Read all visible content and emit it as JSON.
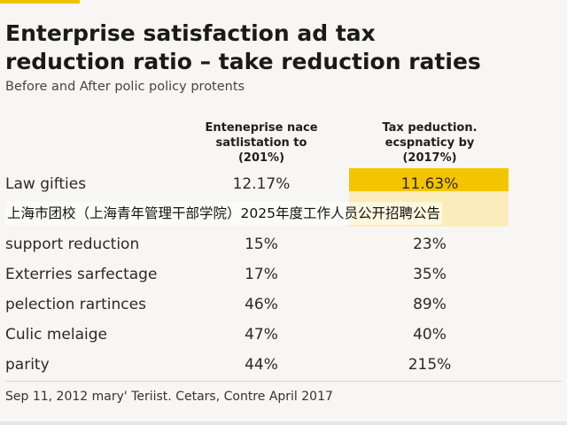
{
  "title": "Enterprise satisfaction ad tax\nreduction ratio – take reduction raties",
  "subtitle": "Before and After polic policy protents",
  "banner": "上海市团校（上海青年管理干部学院）2025年度工作人员公开招聘公告",
  "footer": "Sep 11, 2012 mary' Teriist. Cetars, Contre April 2017",
  "colors": {
    "highlight": "#f5c400",
    "accent": "#f2c200"
  },
  "chart_data": {
    "type": "table",
    "columns": [
      "Enteneprise nace\nsatlistation to\n(201%)",
      "Tax peduction.\necspnaticy by\n(2017%)"
    ],
    "rows": [
      {
        "label": "Law gifties",
        "values": [
          "12.17%",
          "11.63%"
        ]
      },
      {
        "label": "",
        "values": [
          "",
          ""
        ]
      },
      {
        "label": "support reduction",
        "values": [
          "15%",
          "23%"
        ]
      },
      {
        "label": "Exterries sarfectage",
        "values": [
          "17%",
          "35%"
        ]
      },
      {
        "label": "pelection rartinces",
        "values": [
          "46%",
          "89%"
        ]
      },
      {
        "label": "Culic melaige",
        "values": [
          "47%",
          "40%"
        ]
      },
      {
        "label": "parity",
        "values": [
          "44%",
          "215%"
        ]
      }
    ]
  }
}
